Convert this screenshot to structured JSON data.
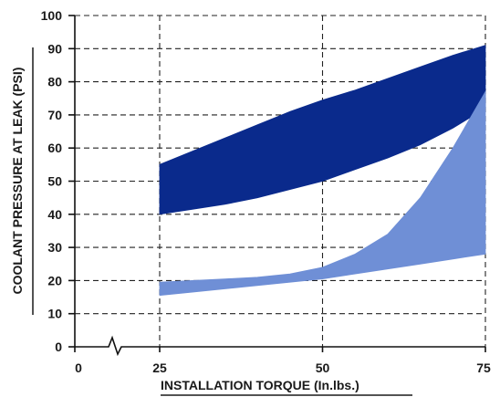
{
  "chart_data": {
    "type": "area",
    "title": "",
    "xlabel": "INSTALLATION TORQUE (In.lbs.)",
    "ylabel": "COOLANT PRESSURE AT LEAK (PSI)",
    "xlim": [
      0,
      75
    ],
    "ylim": [
      0,
      100
    ],
    "x_axis_break": true,
    "x_ticks": [
      0,
      25,
      50,
      75
    ],
    "y_ticks": [
      0,
      10,
      20,
      30,
      40,
      50,
      60,
      70,
      80,
      90,
      100
    ],
    "grid": "dashed",
    "series": [
      {
        "color": "#0a2a8c",
        "x": [
          25,
          30,
          35,
          40,
          45,
          50,
          55,
          60,
          65,
          70,
          75
        ],
        "upper": [
          55,
          59,
          63,
          67,
          71,
          74.5,
          77.5,
          81,
          84.5,
          88,
          91
        ],
        "lower": [
          40,
          41.5,
          43,
          45,
          47.5,
          50,
          53.5,
          57,
          61,
          66,
          72
        ]
      },
      {
        "color": "#6f8fd6",
        "x": [
          25,
          30,
          35,
          40,
          45,
          50,
          55,
          60,
          65,
          70,
          75
        ],
        "upper": [
          19.5,
          20,
          20.5,
          21,
          22,
          24,
          28,
          34,
          45,
          60,
          77
        ],
        "lower": [
          15.5,
          16.5,
          17.5,
          18.5,
          19.5,
          20.5,
          22,
          23.5,
          25,
          26.5,
          28
        ]
      }
    ]
  }
}
